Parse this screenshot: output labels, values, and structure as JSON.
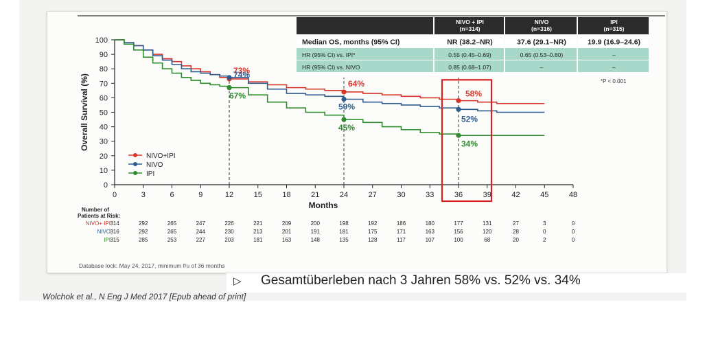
{
  "chart_data": {
    "type": "line",
    "title": "",
    "xlabel": "Months",
    "ylabel": "Overall Survival (%)",
    "xlim": [
      0,
      48
    ],
    "ylim": [
      0,
      100
    ],
    "xticks": [
      0,
      3,
      6,
      9,
      12,
      15,
      18,
      21,
      24,
      27,
      30,
      33,
      36,
      39,
      42,
      45,
      48
    ],
    "yticks": [
      0,
      10,
      20,
      30,
      40,
      50,
      60,
      70,
      80,
      90,
      100
    ],
    "xtick_labels": [
      "0",
      "3",
      "6",
      "9",
      "12",
      "15",
      "18",
      "21",
      "24",
      "27",
      "30",
      "33",
      "36",
      "39",
      "42",
      "45",
      "48"
    ],
    "ytick_labels": [
      "0",
      "10",
      "20",
      "30",
      "40",
      "50",
      "60",
      "70",
      "80",
      "90",
      "100"
    ],
    "series": [
      {
        "name": "NIVO+IPI",
        "color": "#d9362b",
        "x": [
          0,
          1,
          2,
          3,
          4,
          5,
          6,
          7,
          8,
          9,
          10,
          11,
          12,
          14,
          16,
          18,
          20,
          22,
          24,
          26,
          28,
          30,
          32,
          34,
          36,
          38,
          40,
          42,
          45
        ],
        "y": [
          100,
          98,
          96,
          93,
          90,
          87,
          85,
          82,
          80,
          78,
          76,
          74,
          73,
          71,
          69,
          67,
          66,
          65,
          64,
          63,
          62,
          61,
          60,
          59,
          58,
          57,
          56,
          56,
          56
        ],
        "landmarks": [
          {
            "x": 12,
            "y": 73,
            "label": "73%"
          },
          {
            "x": 24,
            "y": 64,
            "label": "64%"
          },
          {
            "x": 36,
            "y": 58,
            "label": "58%"
          }
        ]
      },
      {
        "name": "NIVO",
        "color": "#2f5c8e",
        "x": [
          0,
          1,
          2,
          3,
          4,
          5,
          6,
          7,
          8,
          9,
          10,
          11,
          12,
          14,
          16,
          18,
          20,
          22,
          24,
          26,
          28,
          30,
          32,
          34,
          36,
          38,
          40,
          42,
          45
        ],
        "y": [
          100,
          98,
          96,
          93,
          89,
          86,
          83,
          80,
          78,
          77,
          76,
          75,
          74,
          70,
          66,
          63,
          62,
          61,
          59,
          57,
          56,
          55,
          54,
          53,
          52,
          51,
          50,
          50,
          50
        ],
        "landmarks": [
          {
            "x": 12,
            "y": 74,
            "label": "74%"
          },
          {
            "x": 24,
            "y": 59,
            "label": "59%"
          },
          {
            "x": 36,
            "y": 52,
            "label": "52%"
          }
        ]
      },
      {
        "name": "IPI",
        "color": "#2e8b2e",
        "x": [
          0,
          1,
          2,
          3,
          4,
          5,
          6,
          7,
          8,
          9,
          10,
          11,
          12,
          14,
          16,
          18,
          20,
          22,
          24,
          26,
          28,
          30,
          32,
          34,
          36,
          38,
          40,
          42,
          45
        ],
        "y": [
          100,
          97,
          93,
          88,
          84,
          80,
          77,
          74,
          72,
          70,
          69,
          68,
          67,
          62,
          57,
          53,
          50,
          48,
          45,
          43,
          40,
          38,
          36,
          35,
          34,
          34,
          34,
          34,
          34
        ],
        "landmarks": [
          {
            "x": 12,
            "y": 67,
            "label": "67%"
          },
          {
            "x": 24,
            "y": 45,
            "label": "45%"
          },
          {
            "x": 36,
            "y": 34,
            "label": "34%"
          }
        ]
      }
    ],
    "legend": {
      "position": "left-bottom",
      "entries": [
        "NIVO+IPI",
        "NIVO",
        "IPI"
      ]
    },
    "table": {
      "header": [
        "",
        "NIVO + IPI\n(n=314)",
        "NIVO\n(n=316)",
        "IPI\n(n=315)"
      ],
      "rows": [
        [
          "Median OS, months (95% CI)",
          "NR (38.2–NR)",
          "37.6 (29.1–NR)",
          "19.9 (16.9–24.6)"
        ],
        [
          "HR (95% CI) vs. IPI*",
          "0.55 (0.45–0.69)",
          "0.65 (0.53–0.80)",
          "–"
        ],
        [
          "HR (95% CI) vs. NIVO",
          "0.85 (0.68–1.07)",
          "–",
          "–"
        ]
      ],
      "footnote": "*P < 0.001"
    },
    "at_risk": {
      "title": "Number of\nPatients at Risk:",
      "rows": [
        {
          "label": "NIVO+ IPI",
          "color": "#d9362b",
          "values": [
            "314",
            "292",
            "265",
            "247",
            "226",
            "221",
            "209",
            "200",
            "198",
            "192",
            "186",
            "180",
            "177",
            "131",
            "27",
            "3",
            "0"
          ]
        },
        {
          "label": "NIVO",
          "color": "#2f5c8e",
          "values": [
            "316",
            "292",
            "265",
            "244",
            "230",
            "213",
            "201",
            "191",
            "181",
            "175",
            "171",
            "163",
            "156",
            "120",
            "28",
            "0",
            "0"
          ]
        },
        {
          "label": "IPI",
          "color": "#2e8b2e",
          "values": [
            "315",
            "285",
            "253",
            "227",
            "203",
            "181",
            "163",
            "148",
            "135",
            "128",
            "117",
            "107",
            "100",
            "68",
            "20",
            "2",
            "0"
          ]
        }
      ]
    },
    "database_lock": "Database lock: May 24, 2017, minimum f/u of 36 months"
  },
  "footer": {
    "marker": "▷",
    "text": "Gesamtüberleben nach 3 Jahren 58% vs. 52% vs. 34%"
  },
  "citation": "Wolchok et al., N Eng J Med 2017 [Epub ahead of print]"
}
